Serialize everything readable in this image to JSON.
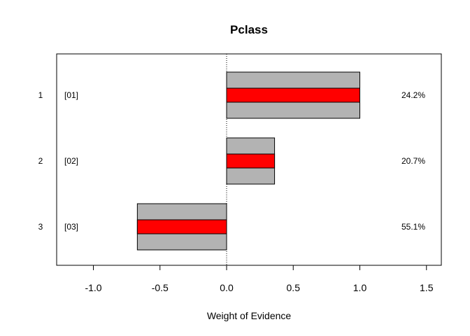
{
  "chart_data": {
    "type": "bar",
    "orientation": "horizontal",
    "title": "Pclass",
    "xlabel": "Weight of Evidence",
    "ylabel": "",
    "xlim": [
      -1.25,
      1.6
    ],
    "x_ticks": [
      -1.0,
      -0.5,
      0.0,
      0.5,
      1.0,
      1.5
    ],
    "x_tick_labels": [
      "-1.0",
      "-0.5",
      "0.0",
      "0.5",
      "1.0",
      "1.5"
    ],
    "row_labels": [
      "1",
      "2",
      "3"
    ],
    "bin_labels": [
      "[01]",
      "[02]",
      "[03]"
    ],
    "values": [
      1.0,
      0.36,
      -0.67
    ],
    "percentages": [
      "24.2%",
      "20.7%",
      "55.1%"
    ],
    "reference_line": 0.0,
    "colors": {
      "outer_bar": "#b3b3b3",
      "inner_bar": "#ff0000",
      "border": "#000000"
    }
  }
}
